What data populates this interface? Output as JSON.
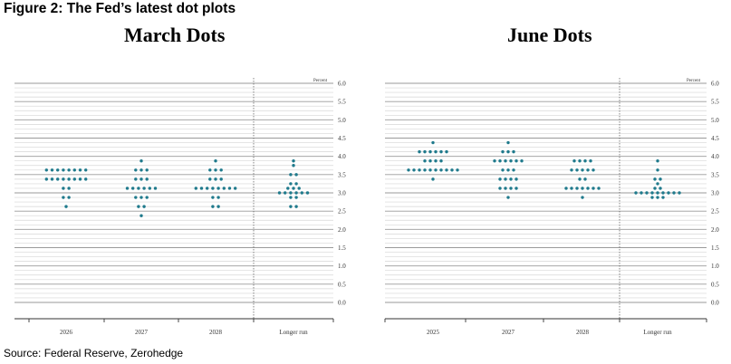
{
  "figure_title": "Figure 2: The Fed’s latest dot plots",
  "source": "Source: Federal Reserve, Zerohedge",
  "colors": {
    "dot": "#1f7a8c",
    "major_grid": "#9a9a9a",
    "minor_grid": "#d6d6d6"
  },
  "chart_data": [
    {
      "type": "scatter",
      "title": "March Dots",
      "unit_label": "Percent",
      "categories": [
        "2026",
        "2027",
        "2028",
        "Longer run"
      ],
      "ylim": [
        0,
        6.0
      ],
      "y_ticks": [
        "0.0",
        "0.5",
        "1.0",
        "1.5",
        "2.0",
        "2.5",
        "3.0",
        "3.5",
        "4.0",
        "4.5",
        "5.0",
        "5.5",
        "6.0"
      ],
      "grid": true,
      "dots": [
        {
          "x": "2026",
          "levels": [
            {
              "y": 3.625,
              "n": 8
            },
            {
              "y": 3.375,
              "n": 8
            },
            {
              "y": 3.125,
              "n": 2
            },
            {
              "y": 2.875,
              "n": 2
            },
            {
              "y": 2.625,
              "n": 1
            }
          ]
        },
        {
          "x": "2027",
          "levels": [
            {
              "y": 3.875,
              "n": 1
            },
            {
              "y": 3.625,
              "n": 3
            },
            {
              "y": 3.375,
              "n": 3
            },
            {
              "y": 3.125,
              "n": 6
            },
            {
              "y": 2.875,
              "n": 3
            },
            {
              "y": 2.625,
              "n": 2
            },
            {
              "y": 2.375,
              "n": 1
            }
          ]
        },
        {
          "x": "2028",
          "levels": [
            {
              "y": 3.875,
              "n": 1
            },
            {
              "y": 3.625,
              "n": 3
            },
            {
              "y": 3.375,
              "n": 3
            },
            {
              "y": 3.125,
              "n": 8
            },
            {
              "y": 2.875,
              "n": 2
            },
            {
              "y": 2.625,
              "n": 2
            }
          ]
        },
        {
          "x": "Longer run",
          "levels": [
            {
              "y": 3.875,
              "n": 1
            },
            {
              "y": 3.75,
              "n": 1
            },
            {
              "y": 3.5,
              "n": 2
            },
            {
              "y": 3.25,
              "n": 2
            },
            {
              "y": 3.125,
              "n": 3
            },
            {
              "y": 3.0,
              "n": 6
            },
            {
              "y": 2.875,
              "n": 2
            },
            {
              "y": 2.625,
              "n": 2
            }
          ]
        }
      ]
    },
    {
      "type": "scatter",
      "title": "June Dots",
      "unit_label": "Percent",
      "categories": [
        "2025",
        "2027",
        "2028",
        "Longer run"
      ],
      "ylim": [
        0,
        6.0
      ],
      "y_ticks": [
        "0.0",
        "0.5",
        "1.0",
        "1.5",
        "2.0",
        "2.5",
        "3.0",
        "3.5",
        "4.0",
        "4.5",
        "5.0",
        "5.5",
        "6.0"
      ],
      "grid": true,
      "dots": [
        {
          "x": "2025",
          "levels": [
            {
              "y": 4.375,
              "n": 1
            },
            {
              "y": 4.125,
              "n": 6
            },
            {
              "y": 3.875,
              "n": 4
            },
            {
              "y": 3.625,
              "n": 10
            },
            {
              "y": 3.375,
              "n": 1
            }
          ]
        },
        {
          "x": "2027",
          "levels": [
            {
              "y": 4.375,
              "n": 1
            },
            {
              "y": 4.125,
              "n": 3
            },
            {
              "y": 3.875,
              "n": 6
            },
            {
              "y": 3.625,
              "n": 3
            },
            {
              "y": 3.375,
              "n": 4
            },
            {
              "y": 3.125,
              "n": 4
            },
            {
              "y": 2.875,
              "n": 1
            }
          ]
        },
        {
          "x": "2028",
          "levels": [
            {
              "y": 3.875,
              "n": 4
            },
            {
              "y": 3.625,
              "n": 5
            },
            {
              "y": 3.375,
              "n": 2
            },
            {
              "y": 3.125,
              "n": 7
            },
            {
              "y": 2.875,
              "n": 1
            }
          ]
        },
        {
          "x": "Longer run",
          "levels": [
            {
              "y": 3.875,
              "n": 1
            },
            {
              "y": 3.625,
              "n": 1
            },
            {
              "y": 3.375,
              "n": 2
            },
            {
              "y": 3.25,
              "n": 1
            },
            {
              "y": 3.125,
              "n": 2
            },
            {
              "y": 3.0,
              "n": 9
            },
            {
              "y": 2.875,
              "n": 3
            }
          ]
        }
      ]
    }
  ]
}
